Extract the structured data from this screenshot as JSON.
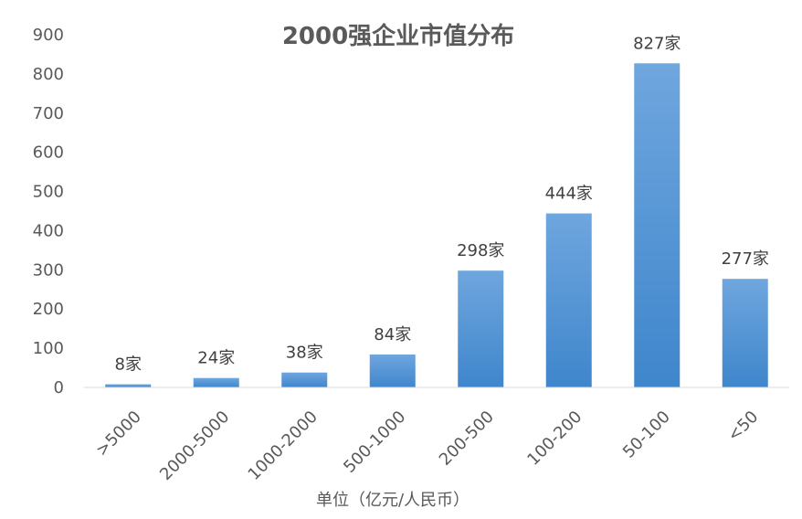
{
  "chart_data": {
    "type": "bar",
    "title": "2000强企业市值分布",
    "xlabel": "单位（亿元/人民币）",
    "ylabel": "",
    "categories": [
      ">5000",
      "2000-5000",
      "1000-2000",
      "500-1000",
      "200-500",
      "100-200",
      "50-100",
      "<50"
    ],
    "values": [
      8,
      24,
      38,
      84,
      298,
      444,
      827,
      277
    ],
    "data_labels": [
      "8家",
      "24家",
      "38家",
      "84家",
      "298家",
      "444家",
      "827家",
      "277家"
    ],
    "ylim": [
      0,
      900
    ],
    "yticks": [
      0,
      100,
      200,
      300,
      400,
      500,
      600,
      700,
      800,
      900
    ],
    "grid": false,
    "legend": "none",
    "colors": {
      "bar_top": "#6fa6de",
      "bar_bottom": "#3f86cc",
      "axis": "#d9d9d9"
    }
  }
}
